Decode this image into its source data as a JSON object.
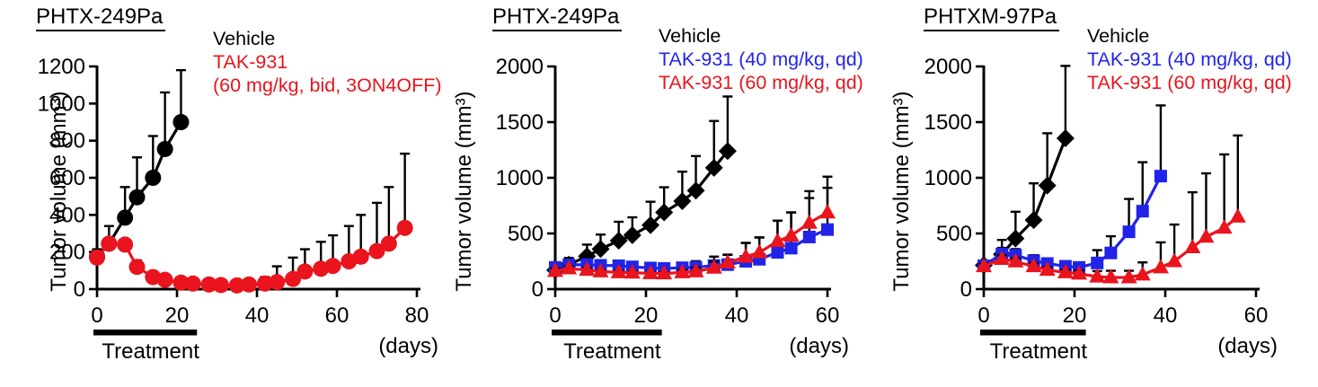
{
  "figure_type": "tumor growth efficacy line charts",
  "chart_data": [
    {
      "type": "line",
      "title": "PHTX-249Pa",
      "ylabel": "Tumor volume (mm³)",
      "xlabel": "(days)",
      "xlim": [
        0,
        80
      ],
      "ylim": [
        0,
        1200
      ],
      "x_ticks": [
        0,
        20,
        40,
        60,
        80
      ],
      "y_ticks": [
        0,
        200,
        400,
        600,
        800,
        1000,
        1200
      ],
      "grid": false,
      "legend_position": "top-right",
      "legend": [
        {
          "text": "Vehicle",
          "color": "#000000"
        },
        {
          "text": "TAK-931",
          "color": "#e9141d"
        },
        {
          "text": "(60 mg/kg, bid, 3ON4OFF)",
          "color": "#e9141d"
        }
      ],
      "treatment_bar": {
        "label": "Treatment",
        "start_day": 0,
        "end_day": 25
      },
      "series": [
        {
          "name": "Vehicle",
          "color": "#000000",
          "marker": "circle",
          "x": [
            0,
            3,
            7,
            10,
            14,
            17,
            21
          ],
          "y": [
            175,
            245,
            385,
            495,
            600,
            755,
            900
          ],
          "err_up": [
            40,
            95,
            165,
            215,
            225,
            305,
            280
          ]
        },
        {
          "name": "TAK-931 (60 mg/kg, bid, 3ON4OFF)",
          "color": "#e9141d",
          "marker": "circle",
          "x": [
            0,
            3,
            7,
            10,
            14,
            17,
            21,
            24,
            28,
            31,
            35,
            38,
            42,
            45,
            49,
            52,
            56,
            59,
            63,
            66,
            70,
            73,
            77
          ],
          "y": [
            170,
            245,
            240,
            120,
            65,
            50,
            35,
            30,
            25,
            22,
            20,
            25,
            30,
            38,
            55,
            95,
            110,
            125,
            150,
            175,
            205,
            245,
            330
          ],
          "err_up": [
            35,
            20,
            15,
            35,
            15,
            10,
            8,
            8,
            8,
            8,
            8,
            10,
            35,
            85,
            115,
            120,
            145,
            165,
            190,
            225,
            260,
            305,
            400
          ]
        }
      ]
    },
    {
      "type": "line",
      "title": "PHTX-249Pa",
      "ylabel": "Tumor volume (mm³)",
      "xlabel": "(days)",
      "xlim": [
        0,
        60
      ],
      "ylim": [
        0,
        2000
      ],
      "x_ticks": [
        0,
        20,
        40,
        60
      ],
      "y_ticks": [
        0,
        500,
        1000,
        1500,
        2000
      ],
      "grid": false,
      "legend_position": "top-right",
      "legend": [
        {
          "text": "Vehicle",
          "color": "#000000"
        },
        {
          "text": "TAK-931 (40 mg/kg, qd)",
          "color": "#2124e8"
        },
        {
          "text": "TAK-931 (60 mg/kg, qd)",
          "color": "#e9141d"
        }
      ],
      "treatment_bar": {
        "label": "Treatment",
        "start_day": 0,
        "end_day": 23.5
      },
      "series": [
        {
          "name": "Vehicle",
          "color": "#000000",
          "marker": "diamond",
          "x": [
            0,
            3,
            7,
            10,
            14,
            17,
            21,
            24,
            28,
            31,
            35,
            38
          ],
          "y": [
            170,
            220,
            295,
            360,
            435,
            485,
            575,
            690,
            790,
            885,
            1090,
            1240
          ],
          "err_up": [
            45,
            60,
            105,
            130,
            170,
            160,
            210,
            225,
            265,
            310,
            420,
            490
          ]
        },
        {
          "name": "TAK-931 (40 mg/kg, qd)",
          "color": "#2124e8",
          "marker": "square",
          "x": [
            0,
            3,
            7,
            10,
            14,
            17,
            21,
            24,
            28,
            31,
            35,
            38,
            42,
            45,
            49,
            52,
            56,
            60
          ],
          "y": [
            195,
            218,
            220,
            214,
            210,
            200,
            190,
            186,
            192,
            196,
            212,
            220,
            250,
            268,
            330,
            368,
            468,
            535
          ],
          "err_up": [
            30,
            35,
            35,
            32,
            30,
            28,
            25,
            25,
            35,
            55,
            80,
            90,
            165,
            195,
            285,
            320,
            350,
            375
          ]
        },
        {
          "name": "TAK-931 (60 mg/kg, qd)",
          "color": "#e9141d",
          "marker": "triangle",
          "x": [
            0,
            3,
            7,
            10,
            14,
            17,
            21,
            24,
            28,
            31,
            35,
            38,
            42,
            45,
            49,
            52,
            56,
            60
          ],
          "y": [
            162,
            185,
            172,
            158,
            150,
            147,
            142,
            140,
            150,
            158,
            192,
            238,
            290,
            330,
            430,
            480,
            595,
            688
          ],
          "err_up": [
            25,
            20,
            18,
            15,
            15,
            14,
            12,
            12,
            25,
            35,
            55,
            70,
            125,
            135,
            185,
            210,
            285,
            322
          ]
        }
      ]
    },
    {
      "type": "line",
      "title": "PHTXM-97Pa",
      "ylabel": "Tumor volume (mm³)",
      "xlabel": "(days)",
      "xlim": [
        0,
        60
      ],
      "ylim": [
        0,
        2000
      ],
      "x_ticks": [
        0,
        20,
        40,
        60
      ],
      "y_ticks": [
        0,
        500,
        1000,
        1500,
        2000
      ],
      "grid": false,
      "legend_position": "top-right",
      "legend": [
        {
          "text": "Vehicle",
          "color": "#000000"
        },
        {
          "text": "TAK-931 (40 mg/kg, qd)",
          "color": "#2124e8"
        },
        {
          "text": "TAK-931 (60 mg/kg, qd)",
          "color": "#e9141d"
        }
      ],
      "treatment_bar": {
        "label": "Treatment",
        "start_day": 0,
        "end_day": 22.5
      },
      "series": [
        {
          "name": "Vehicle",
          "color": "#000000",
          "marker": "diamond",
          "x": [
            0,
            4,
            7,
            11,
            14,
            18
          ],
          "y": [
            215,
            312,
            455,
            620,
            930,
            1355
          ],
          "err_up": [
            35,
            130,
            240,
            330,
            470,
            650
          ]
        },
        {
          "name": "TAK-931 (40 mg/kg, qd)",
          "color": "#2124e8",
          "marker": "square",
          "x": [
            0,
            4,
            7,
            11,
            14,
            18,
            21,
            25,
            28,
            32,
            35,
            39
          ],
          "y": [
            210,
            315,
            305,
            255,
            230,
            205,
            195,
            235,
            325,
            515,
            700,
            1015
          ],
          "err_up": [
            35,
            55,
            55,
            50,
            45,
            40,
            40,
            115,
            150,
            295,
            440,
            635
          ]
        },
        {
          "name": "TAK-931 (60 mg/kg, qd)",
          "color": "#e9141d",
          "marker": "triangle",
          "x": [
            0,
            4,
            7,
            11,
            14,
            18,
            21,
            25,
            28,
            32,
            35,
            39,
            42,
            46,
            49,
            53,
            56
          ],
          "y": [
            205,
            270,
            248,
            205,
            172,
            150,
            138,
            112,
            105,
            105,
            130,
            195,
            250,
            375,
            470,
            550,
            650
          ],
          "err_up": [
            25,
            35,
            30,
            28,
            25,
            22,
            30,
            50,
            60,
            60,
            110,
            225,
            330,
            495,
            570,
            660,
            730
          ]
        }
      ]
    }
  ]
}
